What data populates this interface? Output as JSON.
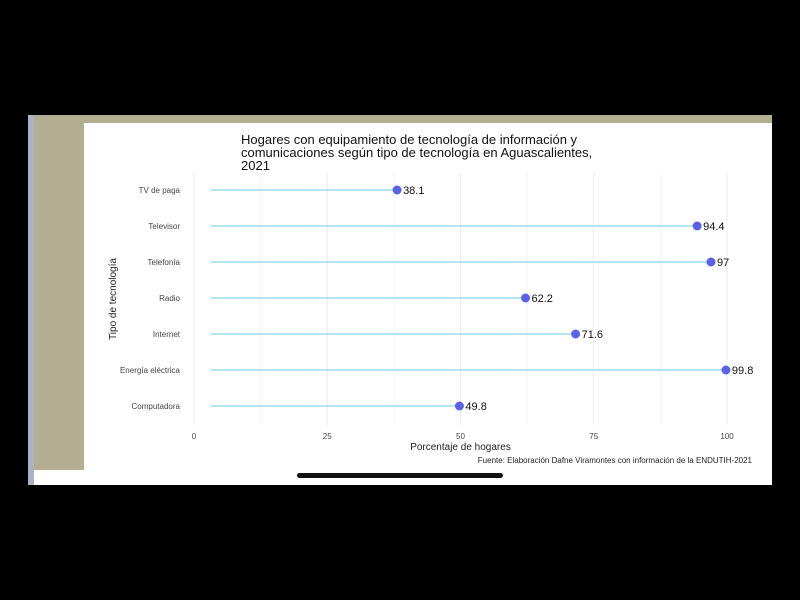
{
  "chart_data": {
    "type": "lollipop",
    "title": "Hogares con equipamiento de tecnología de información y comunicaciones según tipo de tecnología en Aguascalientes, 2021",
    "xlabel": "Porcentaje de hogares",
    "ylabel": "Tipo de tecnología",
    "xlim": [
      0,
      100
    ],
    "xticks": [
      0,
      25,
      50,
      75,
      100
    ],
    "categories": [
      "TV de paga",
      "Televisor",
      "Telefonía",
      "Radio",
      "Internet",
      "Energía eléctrica",
      "Computadora"
    ],
    "values": [
      38.1,
      94.4,
      97,
      62.2,
      71.6,
      99.8,
      49.8
    ],
    "data_labels": [
      "38.1",
      "94.4",
      "97",
      "62.2",
      "71.6",
      "99.8",
      "49.8"
    ],
    "caption": "Fuente: Elaboración Dafne Viramontes con información de la ENDUTIH-2021",
    "grid": true,
    "point_color": "#5b64e0",
    "segment_color": "#9fd9ee"
  }
}
